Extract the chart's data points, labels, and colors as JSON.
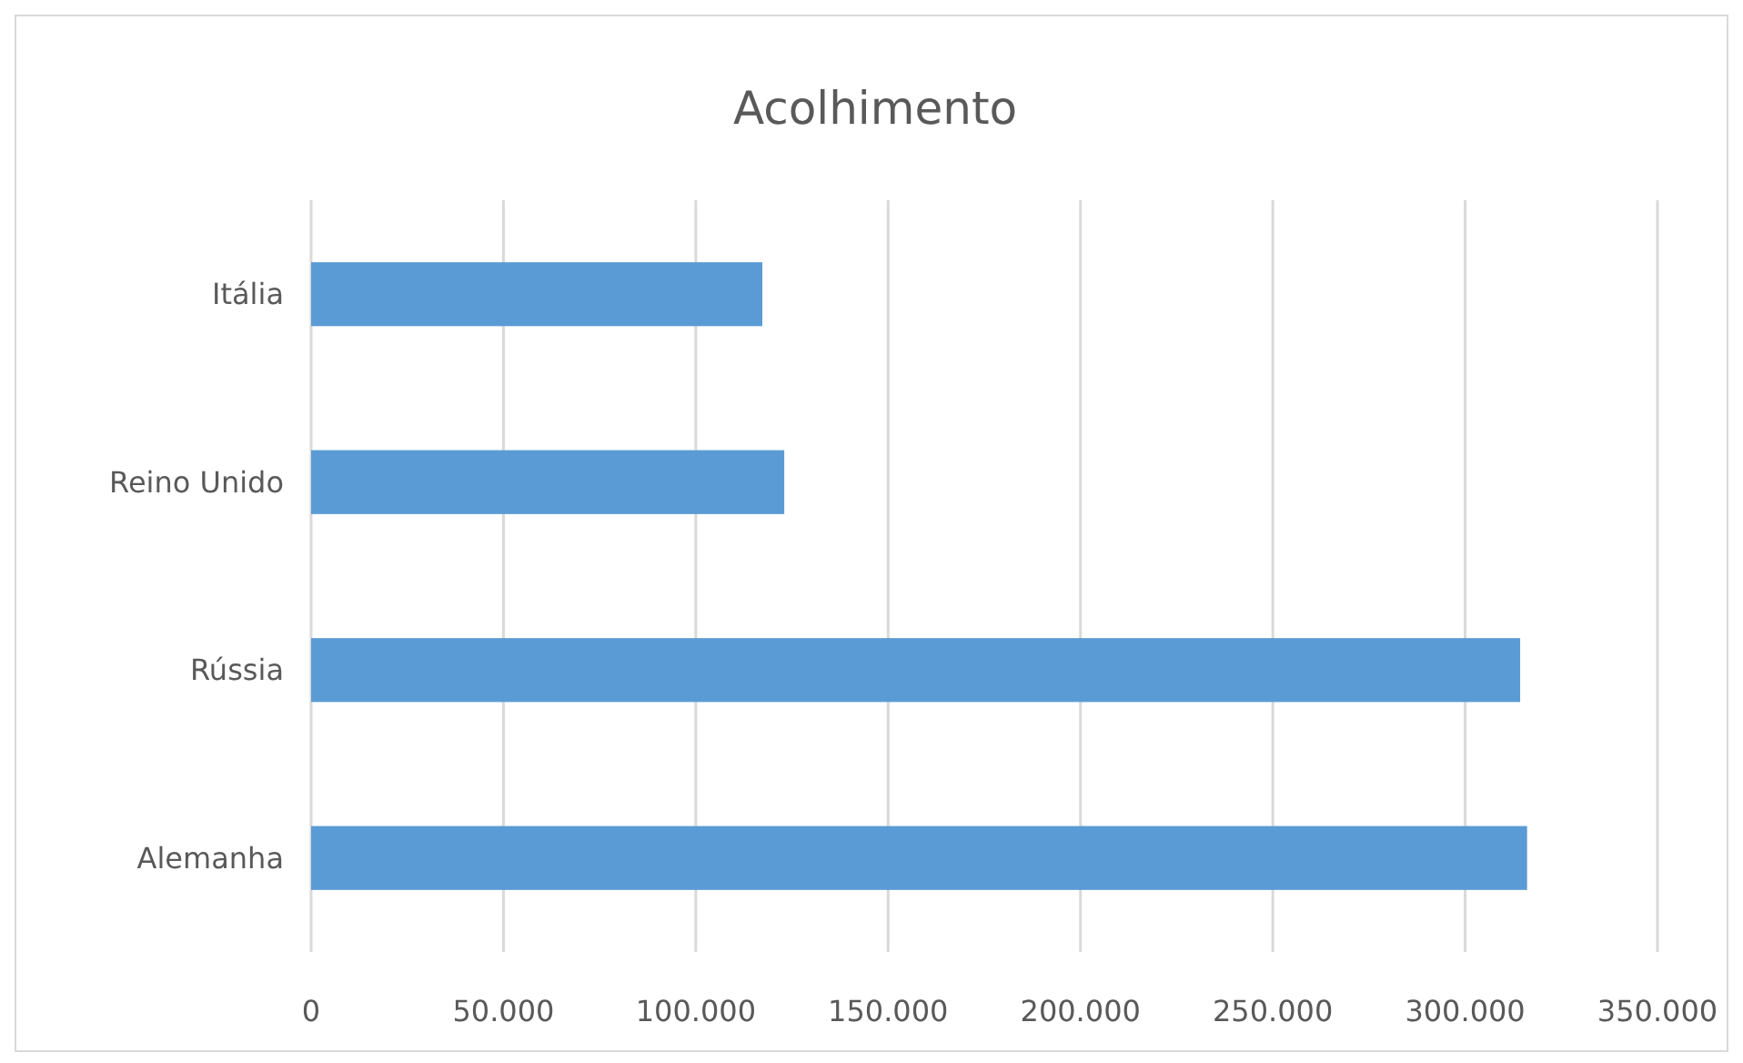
{
  "chart_data": {
    "type": "bar",
    "orientation": "horizontal",
    "title": "Acolhimento",
    "categories": [
      "Itália",
      "Reino Unido",
      "Rússia",
      "Alemanha"
    ],
    "values": [
      117300,
      123000,
      314300,
      316100
    ],
    "color": "#5b9bd5",
    "xlim": [
      0,
      350000
    ],
    "xticks": [
      0,
      {
        "value": 50000,
        "label": "50.000"
      },
      {
        "value": 100000,
        "label": "100.000"
      },
      {
        "value": 150000,
        "label": "150.000"
      },
      {
        "value": 200000,
        "label": "200.000"
      },
      {
        "value": 250000,
        "label": "250.000"
      },
      {
        "value": 300000,
        "label": "300.000"
      },
      {
        "value": 350000,
        "label": "350.000"
      }
    ],
    "grid": "x"
  }
}
